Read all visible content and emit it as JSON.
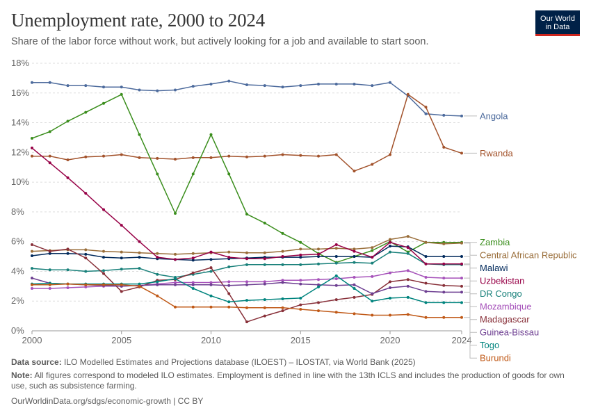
{
  "header": {
    "title": "Unemployment rate, 2000 to 2024",
    "subtitle": "Share of the labor force without work, but actively looking for a job and available to start soon."
  },
  "logo": {
    "line1": "Our World",
    "line2": "in Data"
  },
  "footer": {
    "source_label": "Data source:",
    "source_text": "ILO Modelled Estimates and Projections database (ILOEST) – ILOSTAT, via World Bank (2025)",
    "note_label": "Note:",
    "note_text": "All figures correspond to modeled ILO estimates. Employment is defined in line with the 13th ICLS and includes the production of goods for own use, such as subsistence farming.",
    "url": "OurWorldinData.org/sdgs/economic-growth | CC BY"
  },
  "chart_data": {
    "type": "line",
    "title": "Unemployment rate, 2000 to 2024",
    "ylabel": "",
    "xlabel": "",
    "xlim": [
      2000,
      2024
    ],
    "ylim": [
      0,
      18
    ],
    "x_ticks": [
      "2000",
      "2005",
      "2010",
      "2015",
      "2020",
      "2024"
    ],
    "x_tick_values": [
      2000,
      2005,
      2010,
      2015,
      2020,
      2024
    ],
    "y_ticks": [
      "0%",
      "2%",
      "4%",
      "6%",
      "8%",
      "10%",
      "12%",
      "14%",
      "16%",
      "18%"
    ],
    "y_tick_values": [
      0,
      2,
      4,
      6,
      8,
      10,
      12,
      14,
      16,
      18
    ],
    "x": [
      2000,
      2001,
      2002,
      2003,
      2004,
      2005,
      2006,
      2007,
      2008,
      2009,
      2010,
      2011,
      2012,
      2013,
      2014,
      2015,
      2016,
      2017,
      2018,
      2019,
      2020,
      2021,
      2022,
      2023,
      2024
    ],
    "series": [
      {
        "name": "Angola",
        "color": "#4c6a9c",
        "values": [
          16.7,
          16.7,
          16.5,
          16.5,
          16.4,
          16.4,
          16.2,
          16.15,
          16.2,
          16.45,
          16.6,
          16.8,
          16.55,
          16.5,
          16.4,
          16.5,
          16.6,
          16.6,
          16.6,
          16.5,
          16.7,
          15.8,
          14.6,
          14.5,
          14.45
        ]
      },
      {
        "name": "Rwanda",
        "color": "#a2522b",
        "values": [
          11.75,
          11.75,
          11.5,
          11.7,
          11.75,
          11.85,
          11.65,
          11.6,
          11.55,
          11.65,
          11.65,
          11.75,
          11.7,
          11.75,
          11.85,
          11.8,
          11.75,
          11.85,
          10.75,
          11.2,
          11.85,
          15.9,
          15.05,
          12.35,
          11.95
        ]
      },
      {
        "name": "Zambia",
        "color": "#3b8e1d",
        "values": [
          12.95,
          13.4,
          14.1,
          14.7,
          15.3,
          15.9,
          13.2,
          10.55,
          7.9,
          10.55,
          13.2,
          10.55,
          7.85,
          7.25,
          6.55,
          5.95,
          5.2,
          4.6,
          5.0,
          5.4,
          6.0,
          5.3,
          5.95,
          5.95,
          5.95
        ]
      },
      {
        "name": "Central African Republic",
        "color": "#996d39",
        "values": [
          5.35,
          5.4,
          5.45,
          5.45,
          5.35,
          5.3,
          5.25,
          5.2,
          5.15,
          5.2,
          5.25,
          5.3,
          5.25,
          5.25,
          5.35,
          5.5,
          5.5,
          5.55,
          5.5,
          5.6,
          6.15,
          6.35,
          5.95,
          5.85,
          5.9
        ]
      },
      {
        "name": "Malawi",
        "color": "#00295b",
        "values": [
          5.05,
          5.2,
          5.2,
          5.15,
          4.95,
          4.9,
          4.95,
          4.85,
          4.8,
          4.75,
          4.8,
          4.85,
          4.9,
          4.95,
          4.95,
          4.95,
          5.0,
          5.0,
          5.0,
          4.95,
          5.7,
          5.65,
          5.0,
          5.0,
          5.0
        ]
      },
      {
        "name": "DR Congo",
        "color": "#18807a",
        "values": [
          4.2,
          4.1,
          4.1,
          4.0,
          4.05,
          4.15,
          4.2,
          3.8,
          3.6,
          3.8,
          4.0,
          4.3,
          4.45,
          4.45,
          4.45,
          4.45,
          4.5,
          4.55,
          4.6,
          4.55,
          5.3,
          5.2,
          4.5,
          4.45,
          4.45
        ]
      },
      {
        "name": "Uzbekistan",
        "color": "#970046",
        "values": [
          12.3,
          11.3,
          10.3,
          9.25,
          8.15,
          7.1,
          6.0,
          4.95,
          4.8,
          4.9,
          5.3,
          4.95,
          4.85,
          4.85,
          5.0,
          5.1,
          5.15,
          5.8,
          5.35,
          4.95,
          5.95,
          5.6,
          4.5,
          4.5,
          4.5
        ]
      },
      {
        "name": "Mozambique",
        "color": "#a652ba",
        "values": [
          2.85,
          2.85,
          2.9,
          2.95,
          3.0,
          3.0,
          3.05,
          3.15,
          3.25,
          3.25,
          3.25,
          3.3,
          3.3,
          3.3,
          3.4,
          3.4,
          3.45,
          3.5,
          3.6,
          3.65,
          3.9,
          4.05,
          3.6,
          3.55,
          3.55
        ]
      },
      {
        "name": "Madagascar",
        "color": "#883039",
        "values": [
          5.8,
          5.35,
          5.5,
          4.9,
          3.85,
          2.65,
          2.95,
          3.4,
          3.45,
          3.9,
          4.25,
          2.5,
          0.6,
          1.0,
          1.35,
          1.75,
          1.9,
          2.1,
          2.25,
          2.45,
          3.3,
          3.45,
          3.2,
          3.05,
          3.0
        ]
      },
      {
        "name": "Guinea-Bissau",
        "color": "#6d3e91",
        "values": [
          3.55,
          3.2,
          3.15,
          3.1,
          3.05,
          3.0,
          3.05,
          3.1,
          3.1,
          3.1,
          3.1,
          3.05,
          3.1,
          3.15,
          3.25,
          3.15,
          3.1,
          3.05,
          3.1,
          2.5,
          2.9,
          3.0,
          2.65,
          2.6,
          2.6
        ]
      },
      {
        "name": "Togo",
        "color": "#00847e",
        "values": [
          3.15,
          3.2,
          3.15,
          3.15,
          3.15,
          3.15,
          3.15,
          3.3,
          3.5,
          2.85,
          2.35,
          1.95,
          2.05,
          2.1,
          2.15,
          2.2,
          2.95,
          3.7,
          2.85,
          2.0,
          2.2,
          2.25,
          1.9,
          1.9,
          1.9
        ]
      },
      {
        "name": "Burundi",
        "color": "#c05917",
        "values": [
          3.1,
          3.1,
          3.15,
          3.1,
          3.1,
          3.1,
          3.0,
          2.35,
          1.6,
          1.6,
          1.6,
          1.6,
          1.55,
          1.55,
          1.55,
          1.45,
          1.35,
          1.25,
          1.15,
          1.05,
          1.05,
          1.1,
          0.9,
          0.9,
          0.9
        ]
      }
    ]
  }
}
